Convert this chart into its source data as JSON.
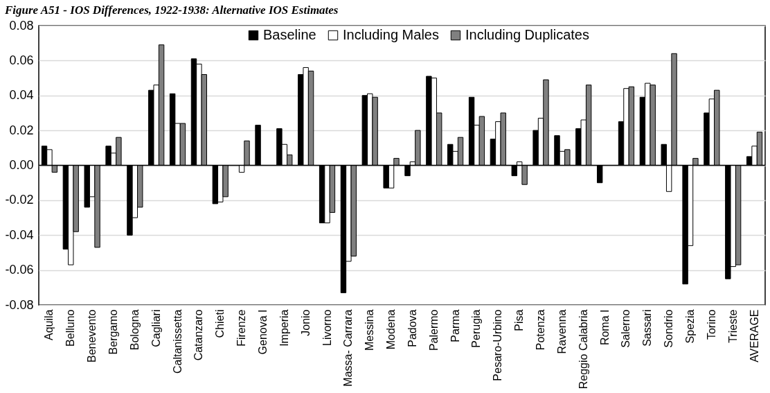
{
  "chart_data": {
    "type": "bar",
    "title": "Figure A51 - IOS Differences, 1922-1938: Alternative IOS Estimates",
    "categories": [
      "Aquila",
      "Belluno",
      "Benevento",
      "Bergamo",
      "Bologna",
      "Cagliari",
      "Caltanissetta",
      "Catanzaro",
      "Chieti",
      "Firenze",
      "Genova I",
      "Imperia",
      "Jonio",
      "Livorno",
      "Massa- Carrara",
      "Messina",
      "Modena",
      "Padova",
      "Palermo",
      "Parma",
      "Perugia",
      "Pesaro-Urbino",
      "Pisa",
      "Potenza",
      "Ravenna",
      "Reggio Calabria",
      "Roma I",
      "Salerno",
      "Sassari",
      "Sondrio",
      "Spezia",
      "Torino",
      "Trieste",
      "AVERAGE"
    ],
    "series": [
      {
        "name": "Baseline",
        "color": "#000000",
        "values": [
          0.011,
          -0.048,
          -0.024,
          0.011,
          -0.04,
          0.043,
          0.041,
          0.061,
          -0.022,
          null,
          0.023,
          0.021,
          0.052,
          -0.033,
          -0.073,
          0.04,
          -0.013,
          -0.006,
          0.051,
          0.012,
          0.039,
          0.015,
          -0.006,
          0.02,
          0.017,
          0.021,
          -0.01,
          0.025,
          0.039,
          0.012,
          -0.068,
          0.03,
          -0.065,
          0.005
        ]
      },
      {
        "name": "Including Males",
        "color": "#ffffff",
        "values": [
          0.009,
          -0.057,
          -0.018,
          0.007,
          -0.03,
          0.046,
          0.024,
          0.058,
          -0.021,
          -0.004,
          null,
          0.012,
          0.056,
          -0.033,
          -0.055,
          0.041,
          -0.013,
          0.002,
          0.05,
          0.008,
          0.023,
          0.025,
          0.002,
          0.027,
          0.008,
          0.026,
          null,
          0.044,
          0.047,
          -0.015,
          -0.046,
          0.038,
          -0.058,
          0.011
        ]
      },
      {
        "name": "Including Duplicates",
        "color": "#808080",
        "values": [
          -0.004,
          -0.038,
          -0.047,
          0.016,
          -0.024,
          0.069,
          0.024,
          0.052,
          -0.018,
          0.014,
          null,
          0.006,
          0.054,
          -0.027,
          -0.052,
          0.039,
          0.004,
          0.02,
          0.03,
          0.016,
          0.028,
          0.03,
          -0.011,
          0.049,
          0.009,
          0.046,
          null,
          0.045,
          0.046,
          0.064,
          0.004,
          0.043,
          -0.057,
          0.019
        ]
      }
    ],
    "ylim": [
      -0.08,
      0.08
    ],
    "yticks": [
      -0.08,
      -0.06,
      -0.04,
      -0.02,
      {
        "value": 0,
        "label": "0.00"
      },
      0.02,
      0.04,
      0.06,
      0.08
    ],
    "grid": "y",
    "legend": "top"
  }
}
